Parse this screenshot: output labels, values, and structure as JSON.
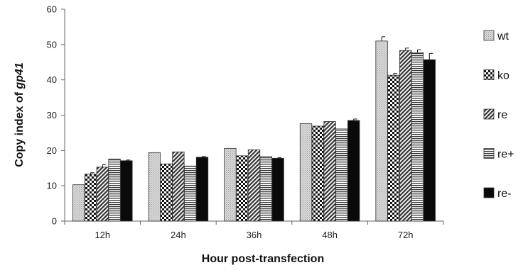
{
  "chart_data": {
    "type": "bar",
    "categories": [
      "12h",
      "24h",
      "36h",
      "48h",
      "72h"
    ],
    "series": [
      {
        "name": "wt",
        "values": [
          10.3,
          19.4,
          20.6,
          27.6,
          51.0
        ],
        "errors": [
          0,
          0,
          0,
          0,
          1.2
        ],
        "pattern": "dots-light"
      },
      {
        "name": "ko",
        "values": [
          13.3,
          16.2,
          18.5,
          26.9,
          41.3
        ],
        "errors": [
          0.4,
          0,
          0,
          0,
          0.5
        ],
        "pattern": "checker"
      },
      {
        "name": "re",
        "values": [
          15.3,
          19.6,
          20.2,
          28.2,
          48.3
        ],
        "errors": [
          0.7,
          0,
          0,
          0,
          0.7
        ],
        "pattern": "diagonal"
      },
      {
        "name": "re+",
        "values": [
          17.6,
          15.6,
          18.3,
          26.1,
          47.7
        ],
        "errors": [
          0,
          0,
          0,
          0,
          0.8
        ],
        "pattern": "horizontal"
      },
      {
        "name": "re-",
        "values": [
          17.1,
          18.1,
          17.8,
          28.5,
          45.7
        ],
        "errors": [
          0.2,
          0.2,
          0.2,
          0.4,
          1.8
        ],
        "pattern": "solid-black"
      }
    ],
    "xlabel": "Hour post-transfection",
    "ylabel_prefix": "Copy index of ",
    "ylabel_italic": "gp41",
    "ylim": [
      0,
      60
    ],
    "yticks": [
      0,
      10,
      20,
      30,
      40,
      50,
      60
    ],
    "grid": false,
    "legend_position": "right"
  }
}
